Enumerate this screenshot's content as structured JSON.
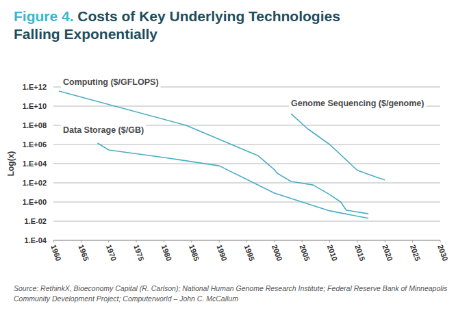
{
  "chart_data": {
    "type": "line",
    "figure_label": "Figure 4.",
    "title": "Costs of Key Underlying Technologies Falling Exponentially",
    "y_label": "Log(x)",
    "source": "Source: RethinkX, Bioeconomy Capital (R. Carlson); National Human Genome Research Institute; Federal Reserve Bank of Minneapolis Community Development Project; Computerworld – John C. McCallum",
    "log": "y",
    "grid": true,
    "xlim": [
      1960,
      2030
    ],
    "xticks": [
      1960,
      1965,
      1970,
      1975,
      1980,
      1985,
      1990,
      1995,
      2000,
      2005,
      2010,
      2015,
      2020,
      2025,
      2030
    ],
    "ylim": [
      0.0001,
      1000000000000
    ],
    "yticks": [
      {
        "value": 1000000000000,
        "label": "1.E+12"
      },
      {
        "value": 10000000000,
        "label": "1.E+10"
      },
      {
        "value": 100000000,
        "label": "1.E+08"
      },
      {
        "value": 1000000,
        "label": "1.E+06"
      },
      {
        "value": 10000,
        "label": "1.E+04"
      },
      {
        "value": 100,
        "label": "1.E+02"
      },
      {
        "value": 1,
        "label": "1.E+00"
      },
      {
        "value": 0.01,
        "label": "1.E-02"
      },
      {
        "value": 0.0001,
        "label": "1.E-04"
      }
    ],
    "series": [
      {
        "name": "Computing ($/GFLOPS)",
        "color": "#4aacc3",
        "x": [
          1961,
          1984,
          1997,
          2000,
          2000.5,
          2003,
          2007,
          2010,
          2012,
          2013,
          2017
        ],
        "values": [
          370000000000,
          100000000,
          70000,
          2300,
          1000,
          140,
          60,
          6,
          1,
          0.14,
          0.06
        ]
      },
      {
        "name": "Data Storage ($/GB)",
        "color": "#4aacc3",
        "x": [
          1968,
          1970,
          1980,
          1990,
          2000,
          2010,
          2017
        ],
        "values": [
          1400000,
          270000,
          44000,
          6000,
          8.5,
          0.12,
          0.02
        ]
      },
      {
        "name": "Genome Sequencing ($/genome)",
        "color": "#4aacc3",
        "x": [
          2003,
          2006,
          2010,
          2015,
          2019,
          2020
        ],
        "values": [
          1600000000,
          44000000,
          1000000,
          2000,
          300,
          200
        ]
      }
    ]
  }
}
